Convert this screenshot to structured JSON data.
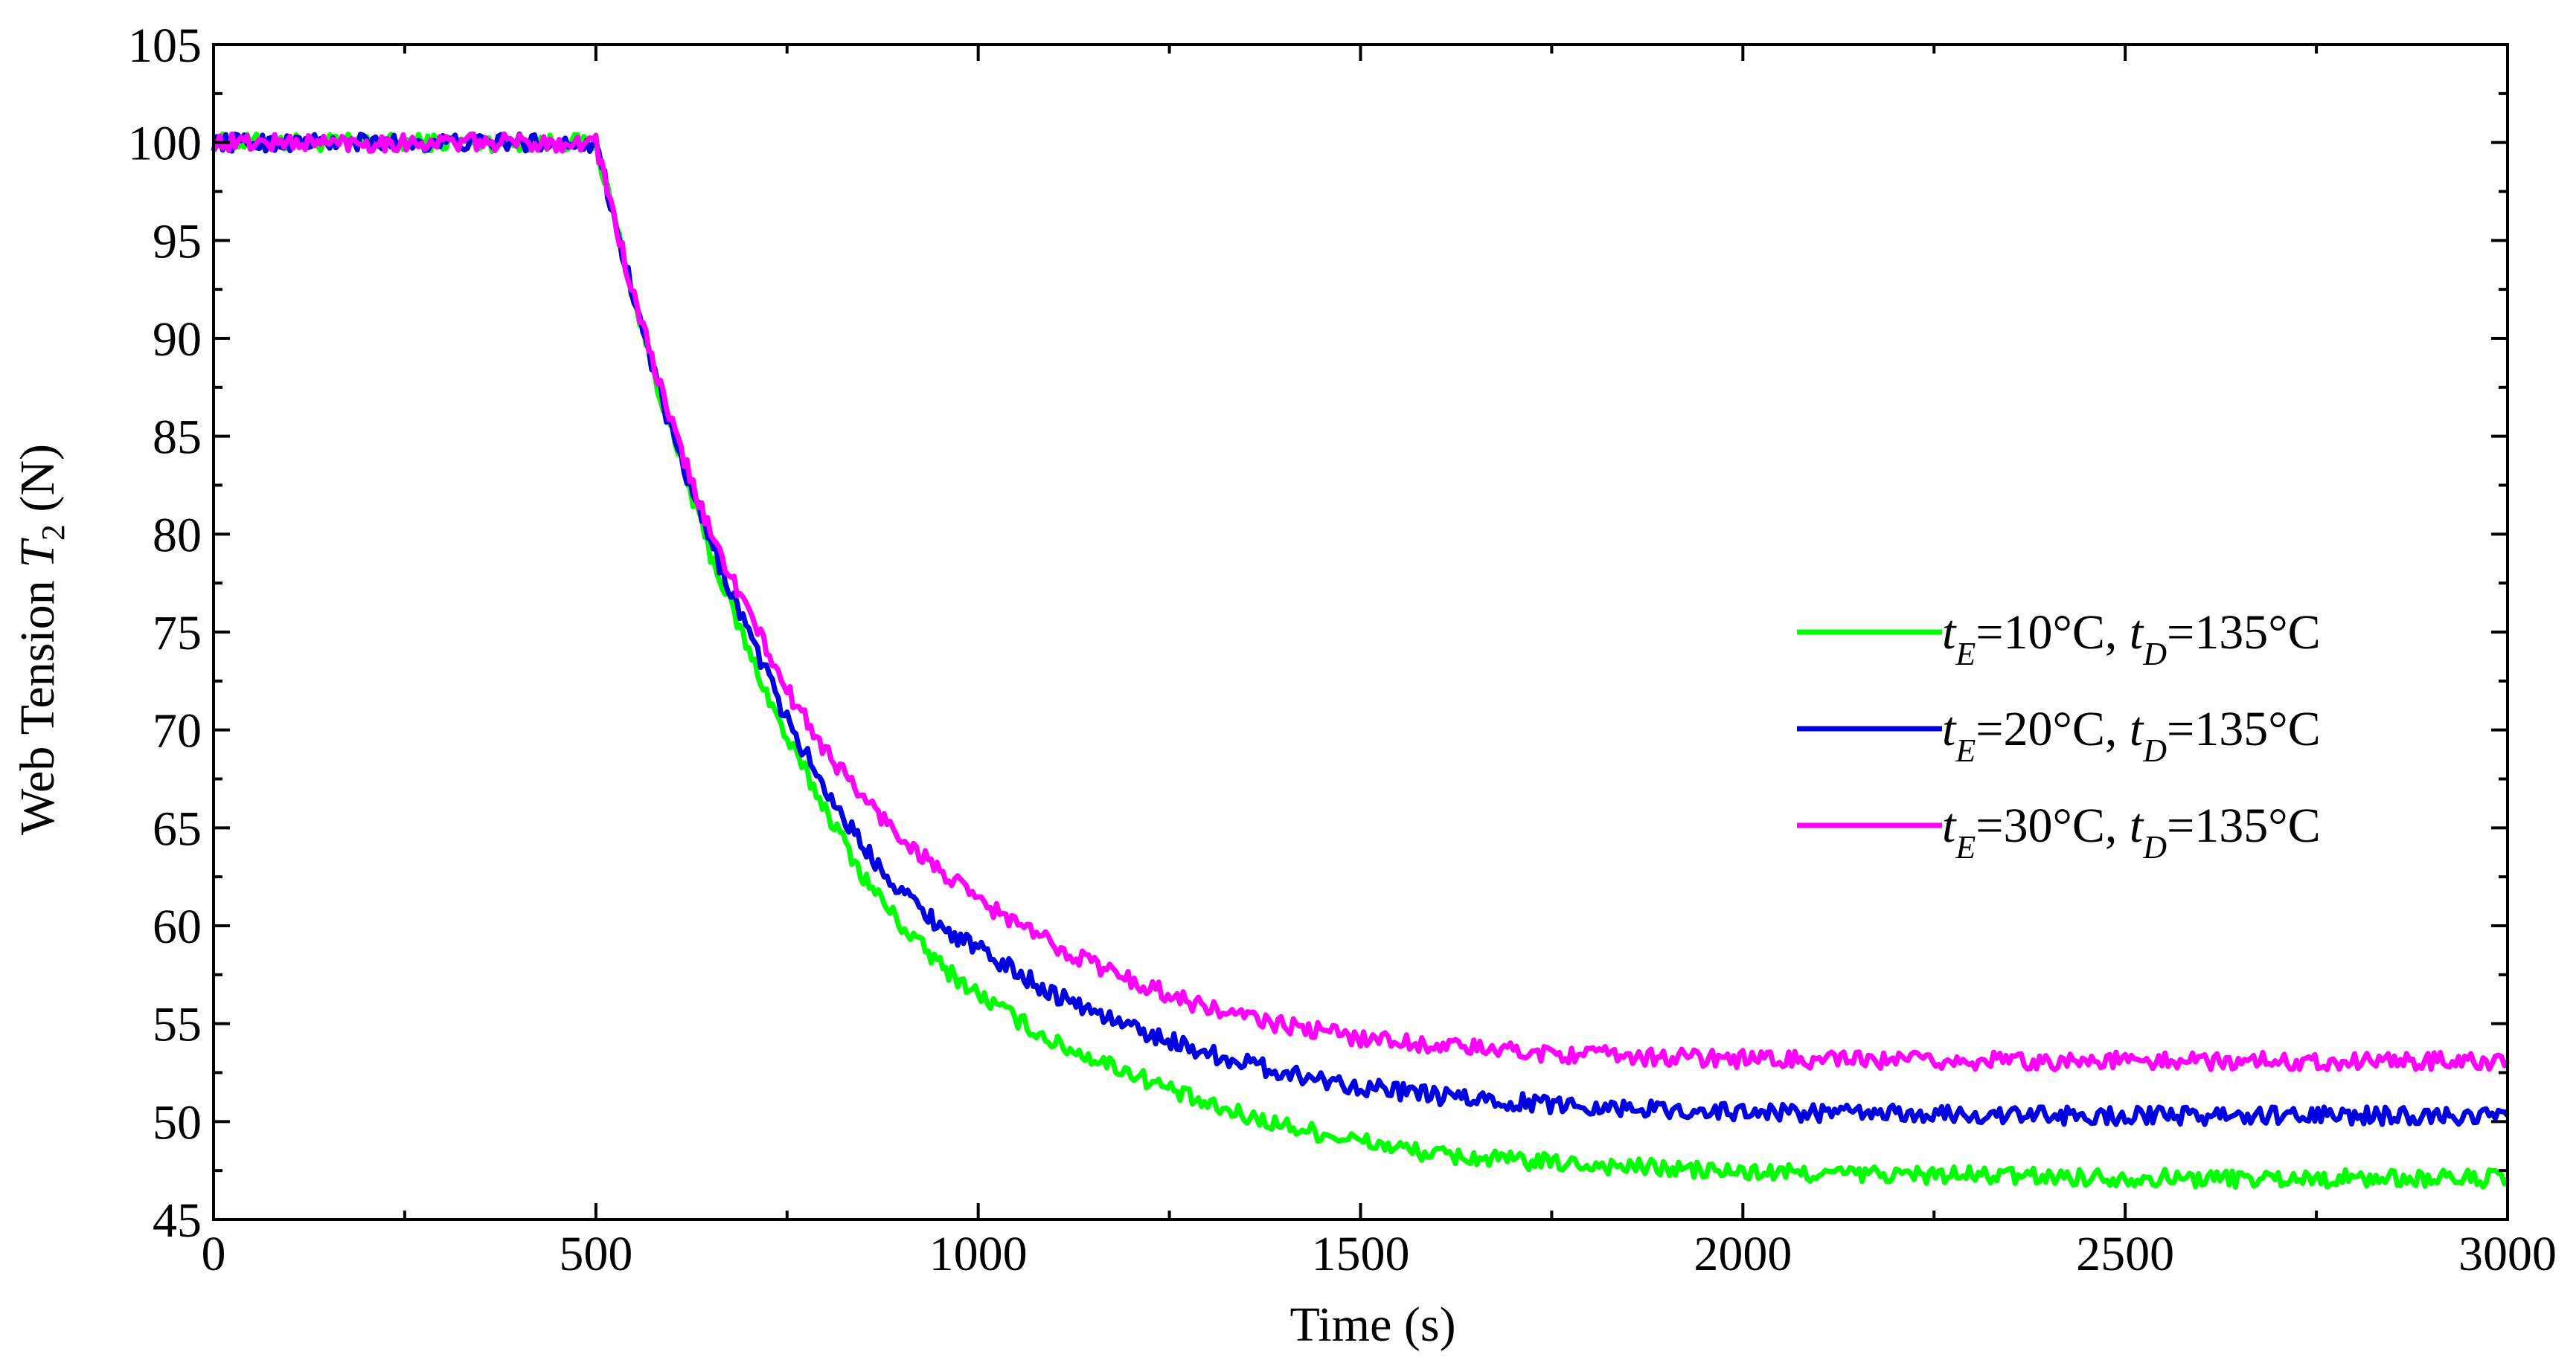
{
  "chart_data": {
    "type": "line",
    "title": "",
    "xlabel": "Time (s)",
    "ylabel_main": "Web Tension ",
    "ylabel_var": "T",
    "ylabel_sub": "2",
    "ylabel_unit": " (N)",
    "xlim": [
      0,
      3000
    ],
    "ylim": [
      45,
      105
    ],
    "x_ticks": [
      "0",
      "500",
      "1000",
      "1500",
      "2000",
      "2500",
      "3000"
    ],
    "y_ticks": [
      "45",
      "50",
      "55",
      "60",
      "65",
      "70",
      "75",
      "80",
      "85",
      "90",
      "95",
      "100",
      "105"
    ],
    "grid": false,
    "legend_position": "right-middle",
    "series": [
      {
        "name": "tE=10°C, tD=135°C",
        "legend": {
          "t1": "t",
          "s1": "E",
          "m1": "=10°C, ",
          "t2": "t",
          "s2": "D",
          "m2": "=135°C"
        },
        "color": "#00ff00",
        "x": [
          0,
          100,
          200,
          300,
          400,
          500,
          550,
          600,
          650,
          700,
          750,
          800,
          850,
          900,
          950,
          1000,
          1100,
          1200,
          1300,
          1400,
          1500,
          1600,
          1700,
          1800,
          1900,
          2000,
          2200,
          2400,
          2600,
          2800,
          3000
        ],
        "y": [
          100,
          100,
          100,
          100,
          100,
          100,
          92,
          85,
          79,
          74,
          69.5,
          66,
          62.5,
          60,
          58,
          56.5,
          54,
          52.5,
          50.8,
          49.8,
          49,
          48.3,
          48,
          47.8,
          47.6,
          47.4,
          47.3,
          47.2,
          47.1,
          47.1,
          47.1
        ]
      },
      {
        "name": "tE=20°C, tD=135°C",
        "legend": {
          "t1": "t",
          "s1": "E",
          "m1": "=20°C, ",
          "t2": "t",
          "s2": "D",
          "m2": "=135°C"
        },
        "color": "#0000e0",
        "x": [
          0,
          100,
          200,
          300,
          400,
          500,
          550,
          600,
          650,
          700,
          750,
          800,
          850,
          900,
          950,
          1000,
          1100,
          1200,
          1300,
          1400,
          1500,
          1600,
          1700,
          1800,
          1900,
          2000,
          2200,
          2400,
          2600,
          2800,
          3000
        ],
        "y": [
          100,
          100,
          100,
          100,
          100,
          100,
          92,
          85,
          79.5,
          75,
          70.5,
          67,
          64,
          61.8,
          60,
          58.8,
          56.5,
          54.8,
          53.5,
          52.5,
          51.8,
          51.3,
          51,
          50.8,
          50.6,
          50.5,
          50.4,
          50.3,
          50.3,
          50.3,
          50.3
        ]
      },
      {
        "name": "tE=30°C, tD=135°C",
        "legend": {
          "t1": "t",
          "s1": "E",
          "m1": "=30°C, ",
          "t2": "t",
          "s2": "D",
          "m2": "=135°C"
        },
        "color": "#ff00ff",
        "x": [
          0,
          100,
          200,
          300,
          400,
          500,
          550,
          600,
          650,
          700,
          750,
          800,
          850,
          900,
          950,
          1000,
          1100,
          1200,
          1300,
          1400,
          1500,
          1600,
          1700,
          1800,
          1900,
          2000,
          2200,
          2400,
          2600,
          2800,
          3000
        ],
        "y": [
          100,
          100,
          100,
          100,
          100,
          100,
          92,
          85.5,
          80,
          76,
          72,
          69,
          66.5,
          64.5,
          62.8,
          61.3,
          59,
          57.2,
          55.8,
          54.9,
          54.3,
          53.9,
          53.6,
          53.4,
          53.3,
          53.2,
          53.1,
          53.1,
          53.1,
          53.1,
          53.1
        ]
      }
    ]
  }
}
